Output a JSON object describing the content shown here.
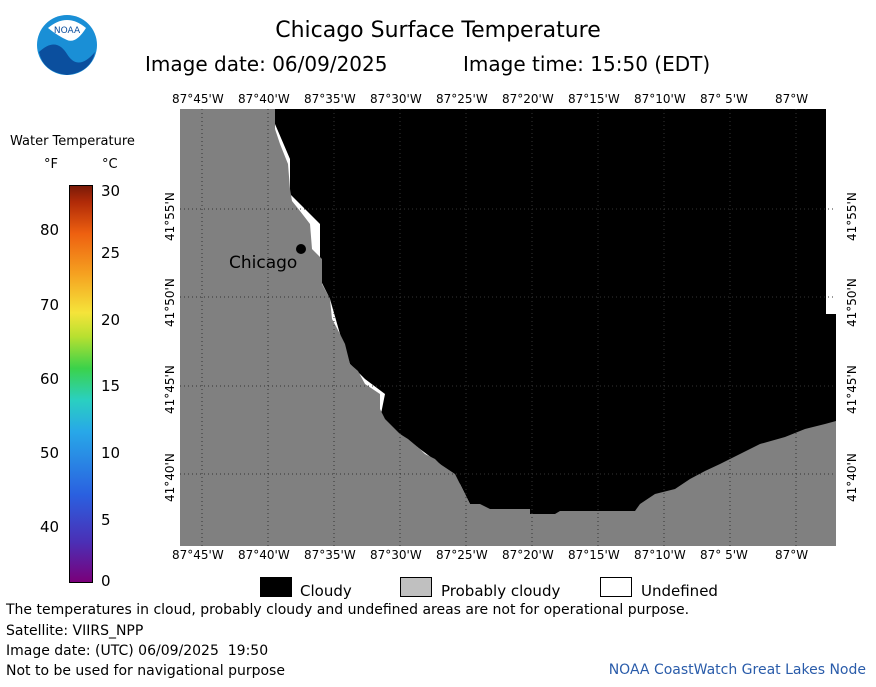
{
  "header": {
    "logo_text": "NOAA",
    "title": "Chicago Surface Temperature",
    "image_date": "Image date: 06/09/2025",
    "image_time": "Image time: 15:50 (EDT)"
  },
  "colorbar": {
    "title": "Water Temperature",
    "unit_f": "°F",
    "unit_c": "°C",
    "f_ticks": [
      "80",
      "70",
      "60",
      "50",
      "40"
    ],
    "c_ticks": [
      "30",
      "25",
      "20",
      "15",
      "10",
      "5",
      "0"
    ]
  },
  "map": {
    "lon_labels_top": [
      "87°45'W",
      "87°40'W",
      "87°35'W",
      "87°30'W",
      "87°25'W",
      "87°20'W",
      "87°15'W",
      "87°10'W",
      "87° 5'W",
      "87°W"
    ],
    "lon_labels_bottom": [
      "87°45'W",
      "87°40'W",
      "87°35'W",
      "87°30'W",
      "87°25'W",
      "87°20'W",
      "87°15'W",
      "87°10'W",
      "87° 5'W",
      "87°W"
    ],
    "lat_labels": [
      "41°55'N",
      "41°50'N",
      "41°45'N",
      "41°40'N"
    ],
    "city_label": "Chicago",
    "colors": {
      "land": "#808080",
      "cloudy": "#000000",
      "probably_cloudy": "#c0c0c0",
      "undefined": "#ffffff"
    }
  },
  "legend": {
    "cloudy": "Cloudy",
    "probably_cloudy": "Probably cloudy",
    "undefined": "Undefined"
  },
  "footer": {
    "disclaimer": "The temperatures in cloud, probably cloudy and undefined areas are not for operational purpose.",
    "satellite": "Satellite: VIIRS_NPP",
    "utc_date": "Image date: (UTC) 06/09/2025  19:50",
    "navigation": "Not to be used for navigational purpose",
    "credit": "NOAA CoastWatch Great Lakes Node"
  }
}
